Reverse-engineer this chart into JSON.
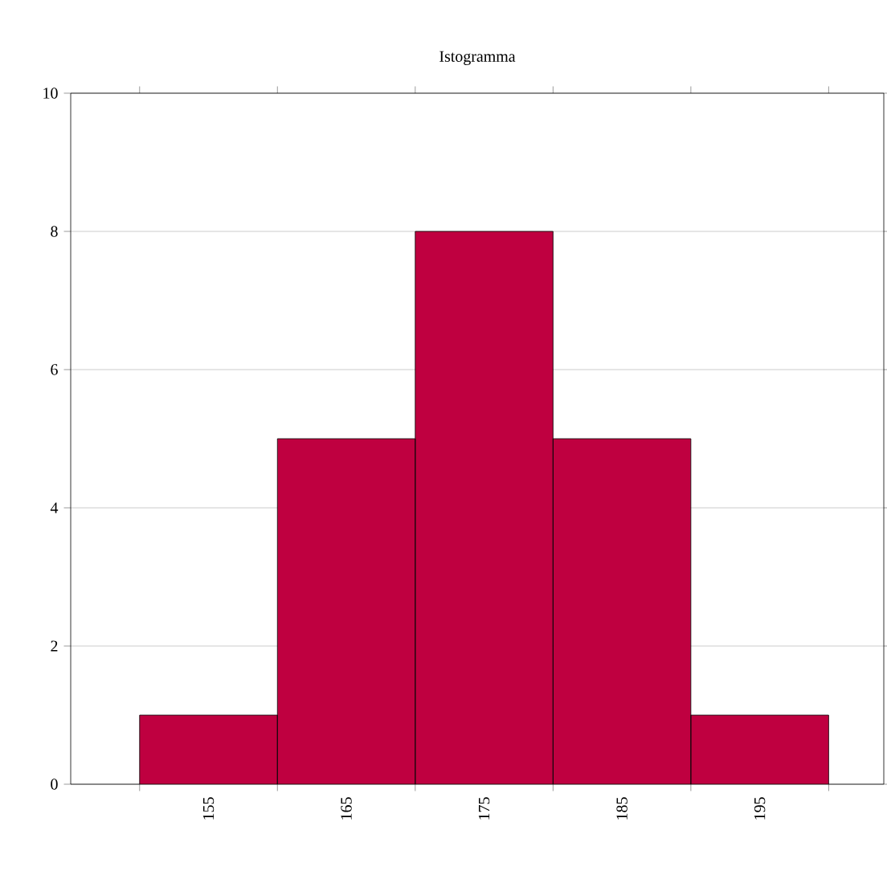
{
  "chart_data": {
    "type": "histogram",
    "title": "Istogramma",
    "bins": [
      150,
      160,
      170,
      180,
      190,
      200
    ],
    "values": [
      1,
      5,
      8,
      5,
      1
    ],
    "color": "#bf0040",
    "xlim": [
      145,
      204
    ],
    "xticks": [
      {
        "value": 150,
        "label": null
      },
      155,
      {
        "value": 160,
        "label": null
      },
      165,
      {
        "value": 170,
        "label": null
      },
      175,
      {
        "value": 180,
        "label": null
      },
      185,
      {
        "value": 190,
        "label": null
      },
      195,
      {
        "value": 200,
        "label": null
      }
    ],
    "ylim": [
      0,
      10
    ],
    "yticks": [
      0,
      2,
      4,
      6,
      8,
      10
    ],
    "grid": "y"
  }
}
